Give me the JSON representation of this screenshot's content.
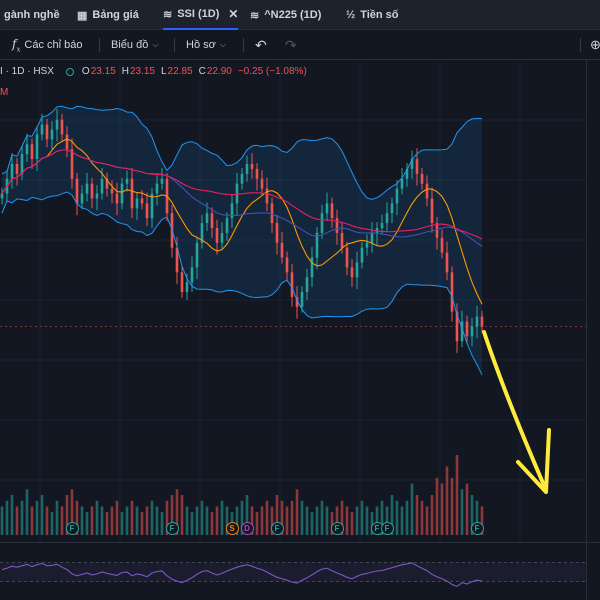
{
  "tabs": [
    {
      "label": "gành nghề",
      "icon": "none"
    },
    {
      "label": "Bảng giá",
      "icon": "table-icon"
    },
    {
      "label": "SSI (1D)",
      "icon": "chart-icon",
      "closable": true
    },
    {
      "label": "^N225 (1D)",
      "icon": "chart-icon"
    },
    {
      "label": "Tiền số",
      "icon": "fraction-icon"
    }
  ],
  "toolbar": {
    "indicators_label": "Các chỉ báo",
    "chart_label": "Biểu đồ",
    "profile_label": "Hồ sơ"
  },
  "legend": {
    "symbol": "I · 1D · HSX",
    "o_label": "O",
    "o_value": "23.15",
    "h_label": "H",
    "h_value": "23.15",
    "l_label": "L",
    "l_value": "22.85",
    "c_label": "C",
    "c_value": "22.90",
    "change": "−0.25 (−1.08%)",
    "sub": "M"
  },
  "colors": {
    "background": "#131722",
    "up": "#26a69a",
    "down": "#ef5350",
    "bollinger": "#2196f3",
    "ma_fast": "#ff9800",
    "ma_slow": "#e91e63",
    "ma_mid": "#3f51b5",
    "rsi": "#7e57c2",
    "annotation": "#ffeb3b"
  },
  "events": [
    {
      "type": "F",
      "day": 14
    },
    {
      "type": "F",
      "day": 34
    },
    {
      "type": "S",
      "day": 46
    },
    {
      "type": "D",
      "day": 49
    },
    {
      "type": "F",
      "day": 55
    },
    {
      "type": "F",
      "day": 67
    },
    {
      "type": "F",
      "day": 75
    },
    {
      "type": "F",
      "day": 77
    },
    {
      "type": "F",
      "day": 95
    }
  ],
  "chart_data": {
    "type": "candlestick",
    "symbol_interval": "1D",
    "days": 97,
    "price_min": 21.0,
    "price_max": 27.5,
    "close": [
      25.6,
      25.9,
      26.2,
      26.0,
      26.4,
      26.6,
      26.3,
      26.8,
      27.0,
      26.7,
      26.9,
      27.1,
      26.8,
      26.5,
      25.9,
      25.4,
      25.6,
      25.8,
      25.5,
      25.6,
      25.9,
      25.7,
      25.6,
      25.4,
      25.8,
      25.9,
      25.3,
      25.5,
      25.4,
      25.1,
      25.6,
      25.8,
      25.9,
      25.2,
      24.5,
      24.0,
      23.6,
      23.8,
      24.1,
      24.6,
      25.0,
      25.2,
      24.9,
      24.6,
      24.8,
      25.1,
      25.4,
      25.8,
      26.0,
      26.2,
      26.1,
      25.9,
      25.7,
      25.4,
      25.0,
      24.6,
      24.3,
      24.0,
      23.5,
      23.3,
      23.6,
      23.9,
      24.3,
      24.8,
      25.2,
      25.4,
      25.1,
      24.8,
      24.5,
      24.1,
      23.9,
      24.2,
      24.5,
      24.6,
      24.8,
      24.9,
      25.0,
      25.2,
      25.4,
      25.7,
      25.9,
      26.1,
      26.3,
      26.0,
      25.8,
      25.5,
      25.0,
      24.7,
      24.4,
      24.0,
      23.2,
      22.6,
      23.0,
      22.7,
      22.9,
      23.1,
      22.9
    ],
    "volume": [
      0.5,
      0.6,
      0.7,
      0.5,
      0.6,
      0.8,
      0.5,
      0.6,
      0.7,
      0.5,
      0.4,
      0.6,
      0.5,
      0.7,
      0.8,
      0.6,
      0.5,
      0.4,
      0.5,
      0.6,
      0.5,
      0.4,
      0.5,
      0.6,
      0.4,
      0.5,
      0.6,
      0.5,
      0.4,
      0.5,
      0.6,
      0.5,
      0.4,
      0.6,
      0.7,
      0.8,
      0.7,
      0.5,
      0.4,
      0.5,
      0.6,
      0.5,
      0.4,
      0.5,
      0.6,
      0.5,
      0.4,
      0.5,
      0.6,
      0.7,
      0.5,
      0.4,
      0.5,
      0.6,
      0.5,
      0.7,
      0.6,
      0.5,
      0.6,
      0.8,
      0.6,
      0.5,
      0.4,
      0.5,
      0.6,
      0.5,
      0.4,
      0.5,
      0.6,
      0.5,
      0.4,
      0.5,
      0.6,
      0.5,
      0.4,
      0.5,
      0.6,
      0.5,
      0.7,
      0.6,
      0.5,
      0.6,
      0.9,
      0.7,
      0.6,
      0.5,
      0.7,
      1.0,
      0.9,
      1.2,
      1.0,
      1.4,
      0.8,
      0.9,
      0.7,
      0.6,
      0.5
    ],
    "rsi": [
      55,
      58,
      62,
      60,
      63,
      66,
      61,
      65,
      68,
      63,
      64,
      66,
      60,
      55,
      46,
      42,
      45,
      48,
      44,
      46,
      50,
      47,
      45,
      43,
      49,
      50,
      42,
      46,
      44,
      40,
      48,
      51,
      52,
      42,
      35,
      31,
      28,
      33,
      38,
      45,
      51,
      53,
      48,
      44,
      47,
      52,
      56,
      60,
      63,
      65,
      62,
      58,
      55,
      50,
      44,
      39,
      36,
      33,
      29,
      27,
      33,
      38,
      44,
      51,
      56,
      58,
      53,
      48,
      44,
      39,
      36,
      41,
      45,
      47,
      50,
      52,
      53,
      56,
      59,
      62,
      65,
      67,
      69,
      63,
      58,
      53,
      45,
      40,
      36,
      31,
      24,
      20,
      28,
      25,
      30,
      33,
      31
    ],
    "annotation": "yellow-arrow-down"
  }
}
